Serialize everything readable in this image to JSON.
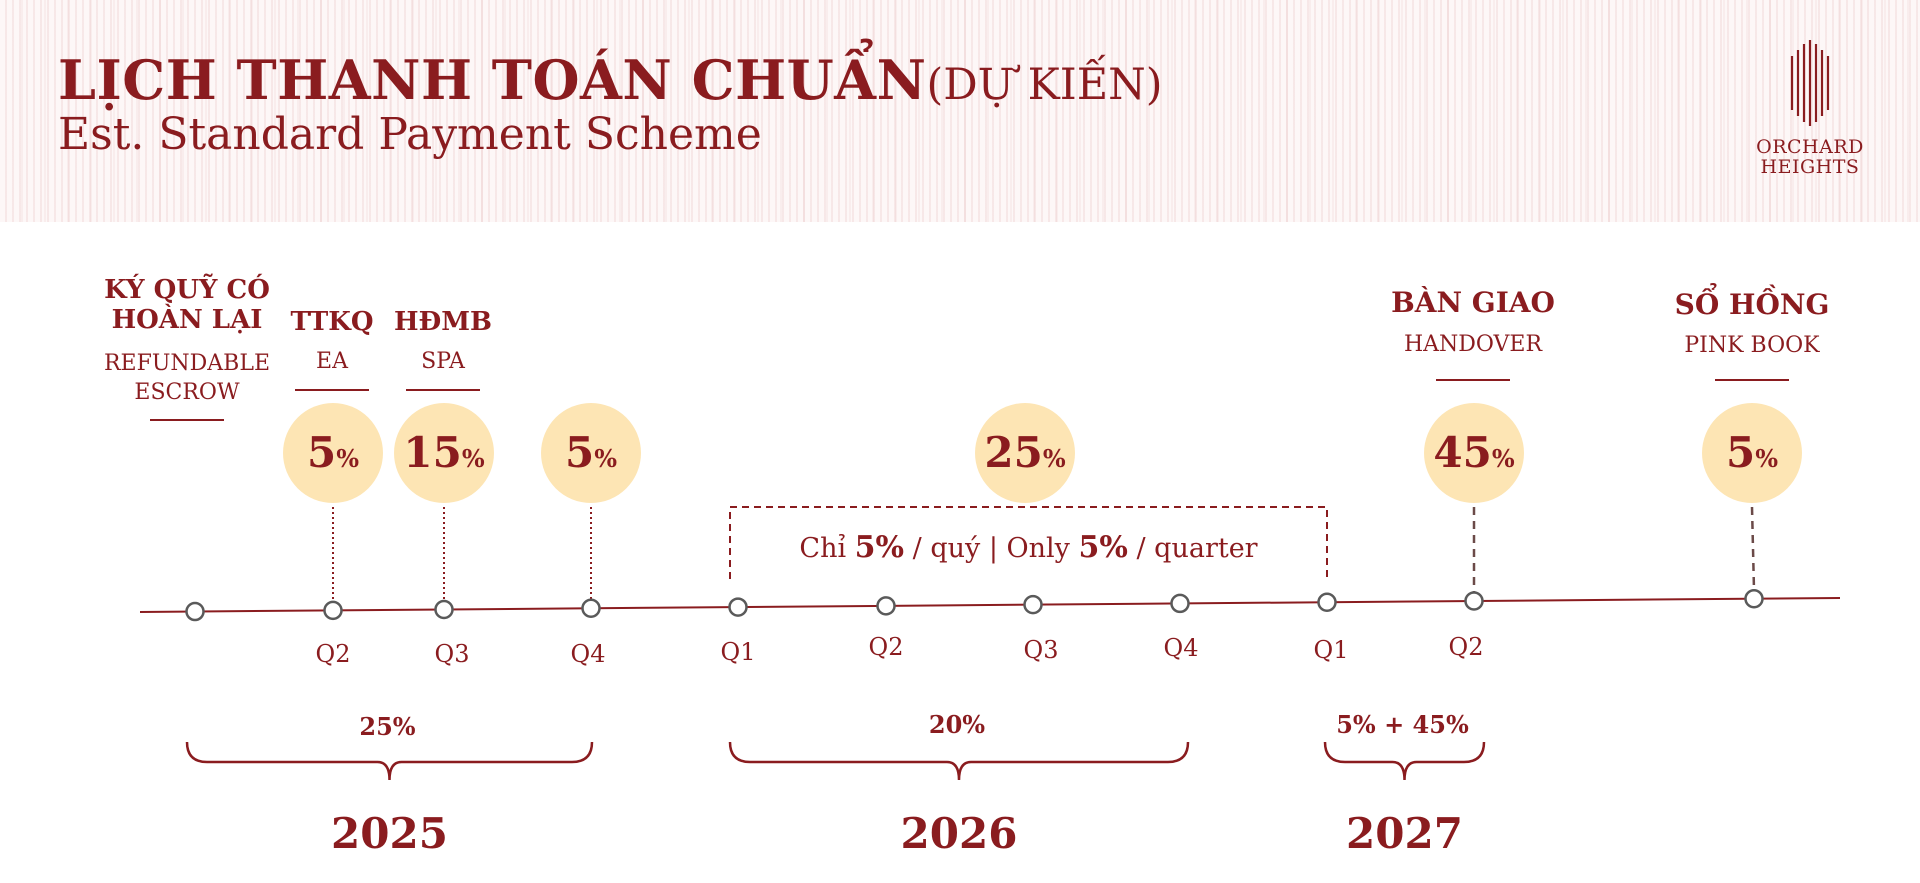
{
  "header": {
    "title": "LỊCH THANH TOÁN CHUẨN",
    "title_suffix": "(DỰ KIẾN)",
    "subtitle": "Est. Standard Payment Scheme",
    "brand_line1": "ORCHARD",
    "brand_line2": "HEIGHTS"
  },
  "milestones": [
    {
      "id": "escrow",
      "vn_lines": [
        "KÝ QUỸ CÓ",
        "HOÀN LẠI"
      ],
      "en_lines": [
        "REFUNDABLE",
        "ESCROW"
      ]
    },
    {
      "id": "ea",
      "vn_lines": [
        "TTKQ"
      ],
      "en_lines": [
        "EA"
      ]
    },
    {
      "id": "spa",
      "vn_lines": [
        "HĐMB"
      ],
      "en_lines": [
        "SPA"
      ]
    },
    {
      "id": "handover",
      "vn_lines": [
        "BÀN GIAO"
      ],
      "en_lines": [
        "HANDOVER"
      ]
    },
    {
      "id": "pinkbook",
      "vn_lines": [
        "SỔ HỒNG"
      ],
      "en_lines": [
        "PINK BOOK"
      ]
    }
  ],
  "payments": [
    {
      "value": "5",
      "unit": "%",
      "node": 1
    },
    {
      "value": "15",
      "unit": "%",
      "node": 2
    },
    {
      "value": "5",
      "unit": "%",
      "node": 3
    },
    {
      "value": "25",
      "unit": "%",
      "node": null
    },
    {
      "value": "45",
      "unit": "%",
      "node": 9
    },
    {
      "value": "5",
      "unit": "%",
      "node": 10
    }
  ],
  "quarterly_note": {
    "p1": "Chỉ ",
    "b1": "5%",
    "p2": " / quý | Only ",
    "b2": "5%",
    "p3": " / quarter"
  },
  "quarters": [
    "",
    "Q2",
    "Q3",
    "Q4",
    "Q1",
    "Q2",
    "Q3",
    "Q4",
    "Q1",
    "Q2",
    ""
  ],
  "year_groups": [
    {
      "year": "2025",
      "total": "25%"
    },
    {
      "year": "2026",
      "total": "20%"
    },
    {
      "year": "2027",
      "total": "5% + 45%"
    }
  ],
  "colors": {
    "primary": "#8a1c1f",
    "bubble": "#fde5b4",
    "node_stroke": "#5a5a5a",
    "dash": "#6b4a48"
  }
}
